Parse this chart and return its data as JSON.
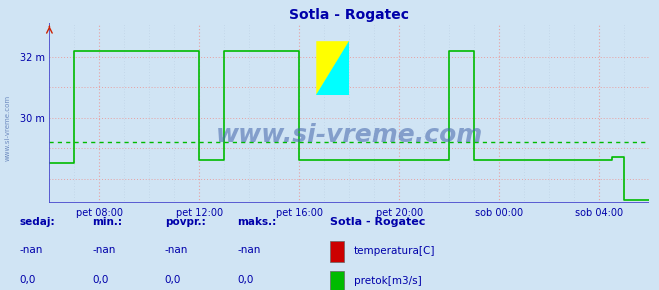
{
  "title": "Sotla - Rogatec",
  "bg_color": "#d0e4f4",
  "plot_bg_color": "#d0e4f4",
  "grid_color_pink": "#e8a0a0",
  "grid_color_gray": "#b8cce0",
  "line_color_flow": "#00bb00",
  "line_color_axis": "#4444cc",
  "title_color": "#0000aa",
  "tick_color": "#0000aa",
  "watermark_color": "#4466aa",
  "ylim": [
    27.2,
    33.1
  ],
  "xlim": [
    0,
    288
  ],
  "ytick_vals": [
    28,
    30,
    32
  ],
  "ytick_labels": [
    "",
    "30 m",
    "32 m"
  ],
  "xtick_positions": [
    24,
    72,
    120,
    168,
    216,
    264
  ],
  "xtick_labels": [
    "pet 08:00",
    "pet 12:00",
    "pet 16:00",
    "pet 20:00",
    "sob 00:00",
    "sob 04:00"
  ],
  "flow_x": [
    0,
    12,
    12,
    72,
    72,
    84,
    84,
    120,
    120,
    192,
    192,
    204,
    204,
    270,
    270,
    276,
    276,
    288
  ],
  "flow_y": [
    28.5,
    28.5,
    32.2,
    32.2,
    28.6,
    28.6,
    32.2,
    32.2,
    28.6,
    28.6,
    32.2,
    32.2,
    28.6,
    28.6,
    28.7,
    28.7,
    27.3,
    27.3
  ],
  "avg_line_y": 29.2,
  "legend_title": "Sotla - Rogatec",
  "legend_items": [
    {
      "label": "temperatura[C]",
      "color": "#cc0000"
    },
    {
      "label": "pretok[m3/s]",
      "color": "#00bb00"
    }
  ],
  "footer_cols": [
    "sedaj:",
    "min.:",
    "povpr.:",
    "maks.:"
  ],
  "footer_row1": [
    "-nan",
    "-nan",
    "-nan",
    "-nan"
  ],
  "footer_row2": [
    "0,0",
    "0,0",
    "0,0",
    "0,0"
  ],
  "fontsize_title": 10,
  "fontsize_ticks": 7,
  "fontsize_footer": 7.5,
  "fontsize_watermark": 18
}
